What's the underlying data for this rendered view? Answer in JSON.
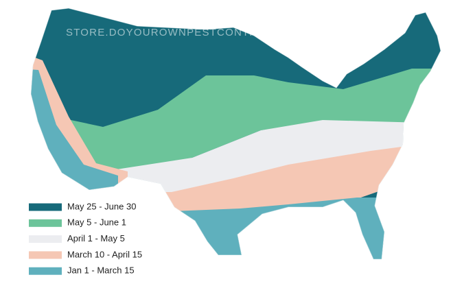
{
  "watermark": "STORE.DOYOUROWNPESTCONTROL.COM",
  "legend": [
    {
      "label": "May 25 - June 30",
      "color": "#176a7a"
    },
    {
      "label": "May 5 - June 1",
      "color": "#6cc49a"
    },
    {
      "label": "April 1 - May 5",
      "color": "#ecedf0"
    },
    {
      "label": "March 10 - April 15",
      "color": "#f5c7b4"
    },
    {
      "label": "Jan 1 - March 15",
      "color": "#5fb0bd"
    }
  ]
}
